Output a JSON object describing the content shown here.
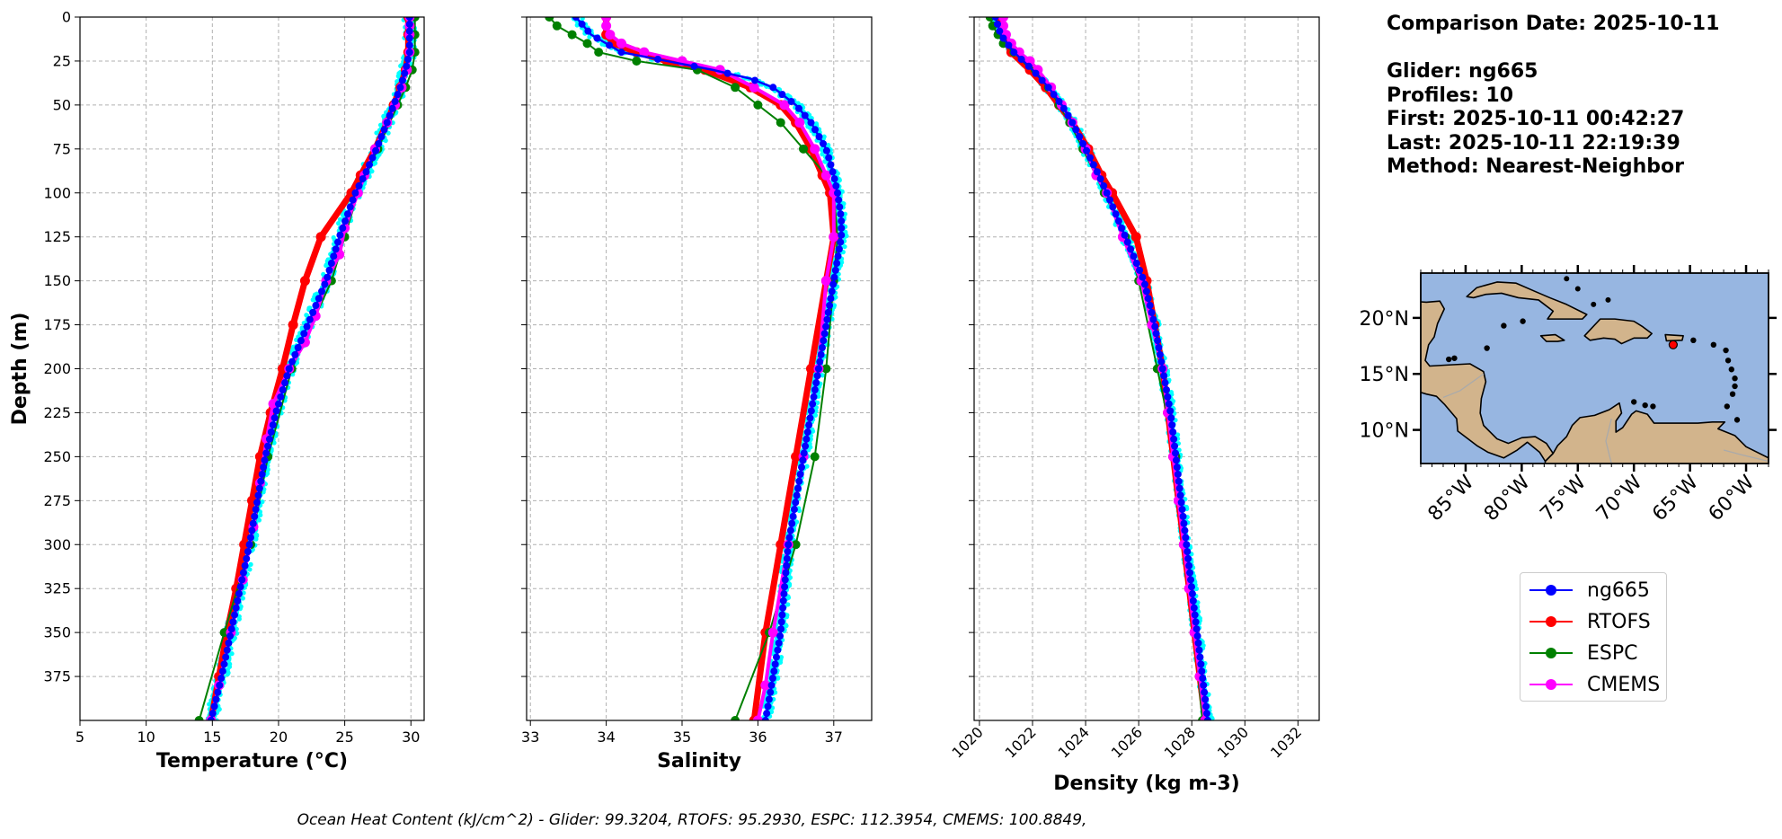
{
  "info": {
    "comparison_date": "Comparison Date: 2025-10-11",
    "glider": "Glider: ng665",
    "profiles": "Profiles: 10",
    "first": "First: 2025-10-11 00:42:27",
    "last": "Last: 2025-10-11 22:19:39",
    "method": "Method: Nearest-Neighbor"
  },
  "footer": "Ocean Heat Content (kJ/cm^2) - Glider: 99.3204,  RTOFS: 95.2930,  ESPC: 112.3954,  CMEMS: 100.8849,",
  "colors": {
    "ng665": "#0000ff",
    "RTOFS": "#ff0000",
    "ESPC": "#008000",
    "CMEMS": "#ff00ff",
    "glider_profiles": "#00ffff"
  },
  "legend": [
    {
      "label": "ng665",
      "color": "#0000ff"
    },
    {
      "label": "RTOFS",
      "color": "#ff0000"
    },
    {
      "label": "ESPC",
      "color": "#008000"
    },
    {
      "label": "CMEMS",
      "color": "#ff00ff"
    }
  ],
  "map": {
    "lat_ticks": [
      "10°N",
      "15°N",
      "20°N"
    ],
    "lon_ticks": [
      "85°W",
      "80°W",
      "75°W",
      "70°W",
      "65°W",
      "60°W"
    ],
    "extent": {
      "lon": [
        -89,
        -58
      ],
      "lat": [
        7,
        24
      ]
    },
    "glider_position": {
      "lon": -66.5,
      "lat": 17.6
    },
    "ocean_color": "#97b6e1",
    "land_color": "#d2b48c"
  },
  "chart_data": [
    {
      "type": "line",
      "id": "temperature",
      "xlabel": "Temperature (°C)",
      "ylabel": "Depth (m)",
      "xlim": [
        5,
        31
      ],
      "ylim": [
        0,
        400
      ],
      "x_ticks": [
        5,
        10,
        15,
        20,
        25,
        30
      ],
      "y_ticks": [
        0,
        25,
        50,
        75,
        100,
        125,
        150,
        175,
        200,
        225,
        250,
        275,
        300,
        325,
        350,
        375
      ],
      "series": [
        {
          "name": "ng665",
          "depth": [
            0,
            10,
            20,
            30,
            40,
            50,
            60,
            75,
            90,
            100,
            125,
            150,
            175,
            200,
            225,
            250,
            275,
            300,
            325,
            350,
            375,
            400
          ],
          "values": [
            29.9,
            29.9,
            29.9,
            29.6,
            29.2,
            28.7,
            28.2,
            27.4,
            26.5,
            25.8,
            24.6,
            23.6,
            22.2,
            20.8,
            19.8,
            19.0,
            18.4,
            17.8,
            17.1,
            16.4,
            15.7,
            14.9
          ]
        },
        {
          "name": "RTOFS",
          "depth": [
            0,
            10,
            20,
            30,
            40,
            50,
            60,
            75,
            90,
            100,
            125,
            150,
            175,
            200,
            225,
            250,
            275,
            300,
            325,
            350,
            375,
            400
          ],
          "values": [
            29.8,
            29.8,
            29.8,
            29.6,
            29.2,
            28.7,
            28.2,
            27.3,
            26.2,
            25.5,
            23.2,
            22.0,
            21.1,
            20.3,
            19.4,
            18.6,
            18.0,
            17.4,
            16.8,
            16.1,
            15.5,
            14.9
          ]
        },
        {
          "name": "ESPC",
          "depth": [
            0,
            10,
            20,
            30,
            40,
            50,
            75,
            100,
            125,
            150,
            200,
            250,
            300,
            350,
            400
          ],
          "values": [
            30.3,
            30.3,
            30.3,
            30.1,
            29.6,
            29.0,
            27.5,
            26.0,
            25.0,
            24.0,
            21.0,
            19.2,
            17.9,
            15.9,
            14.0
          ]
        },
        {
          "name": "CMEMS",
          "depth": [
            0,
            5,
            10,
            20,
            30,
            40,
            50,
            60,
            75,
            90,
            100,
            120,
            135,
            150,
            170,
            185,
            200,
            220,
            240,
            265,
            290,
            320,
            350,
            380,
            400
          ],
          "values": [
            29.9,
            29.9,
            29.9,
            29.9,
            29.7,
            29.3,
            28.8,
            28.2,
            27.3,
            26.5,
            26.0,
            25.0,
            24.6,
            23.6,
            22.8,
            22.0,
            20.8,
            19.6,
            19.1,
            18.6,
            18.1,
            17.3,
            16.4,
            15.5,
            14.9
          ]
        }
      ]
    },
    {
      "type": "line",
      "id": "salinity",
      "xlabel": "Salinity",
      "xlim": [
        32.95,
        37.5
      ],
      "ylim": [
        0,
        400
      ],
      "x_ticks": [
        33,
        34,
        35,
        36,
        37
      ],
      "series": [
        {
          "name": "ng665",
          "depth": [
            0,
            10,
            20,
            25,
            30,
            35,
            40,
            50,
            60,
            75,
            90,
            100,
            115,
            125,
            150,
            175,
            200,
            250,
            300,
            350,
            400
          ],
          "values": [
            33.6,
            33.8,
            34.2,
            34.8,
            35.4,
            35.9,
            36.2,
            36.5,
            36.7,
            36.9,
            37.0,
            37.05,
            37.1,
            37.1,
            37.0,
            36.9,
            36.8,
            36.6,
            36.4,
            36.3,
            36.1
          ]
        },
        {
          "name": "RTOFS",
          "depth": [
            0,
            10,
            15,
            20,
            25,
            30,
            40,
            50,
            60,
            75,
            90,
            100,
            125,
            150,
            200,
            250,
            300,
            350,
            400
          ],
          "values": [
            34.0,
            34.0,
            34.1,
            34.4,
            34.8,
            35.3,
            35.9,
            36.3,
            36.5,
            36.7,
            36.85,
            36.95,
            37.0,
            36.9,
            36.7,
            36.5,
            36.3,
            36.1,
            35.95
          ]
        },
        {
          "name": "ESPC",
          "depth": [
            0,
            5,
            10,
            15,
            20,
            25,
            30,
            40,
            50,
            60,
            75,
            90,
            100,
            125,
            150,
            200,
            250,
            300,
            350,
            400
          ],
          "values": [
            33.25,
            33.35,
            33.55,
            33.75,
            33.9,
            34.4,
            35.2,
            35.7,
            36.0,
            36.3,
            36.6,
            36.9,
            37.0,
            37.05,
            37.0,
            36.9,
            36.75,
            36.5,
            36.15,
            35.7
          ]
        },
        {
          "name": "CMEMS",
          "depth": [
            0,
            5,
            10,
            15,
            20,
            25,
            30,
            40,
            50,
            60,
            75,
            90,
            100,
            125,
            150,
            200,
            250,
            300,
            350,
            380,
            400
          ],
          "values": [
            34.0,
            34.0,
            34.05,
            34.2,
            34.5,
            35.0,
            35.5,
            35.95,
            36.35,
            36.55,
            36.75,
            36.9,
            37.0,
            37.0,
            36.9,
            36.8,
            36.6,
            36.4,
            36.2,
            36.1,
            36.0
          ]
        }
      ]
    },
    {
      "type": "line",
      "id": "density",
      "xlabel": "Density (kg m-3)",
      "xlim": [
        1019.8,
        1032.8
      ],
      "ylim": [
        0,
        400
      ],
      "x_ticks": [
        1020,
        1022,
        1024,
        1026,
        1028,
        1030,
        1032
      ],
      "series": [
        {
          "name": "ng665",
          "depth": [
            0,
            10,
            20,
            30,
            40,
            50,
            60,
            75,
            90,
            100,
            125,
            150,
            175,
            200,
            225,
            250,
            275,
            300,
            325,
            350,
            375,
            400
          ],
          "values": [
            1020.6,
            1020.8,
            1021.3,
            1022.0,
            1022.6,
            1023.1,
            1023.5,
            1024.0,
            1024.5,
            1024.8,
            1025.5,
            1026.2,
            1026.6,
            1026.9,
            1027.2,
            1027.4,
            1027.6,
            1027.8,
            1028.0,
            1028.2,
            1028.4,
            1028.6
          ]
        },
        {
          "name": "RTOFS",
          "depth": [
            0,
            10,
            20,
            30,
            40,
            50,
            60,
            75,
            90,
            100,
            125,
            150,
            175,
            200,
            225,
            250,
            275,
            300,
            325,
            350,
            375,
            400
          ],
          "values": [
            1020.8,
            1020.9,
            1021.2,
            1021.9,
            1022.5,
            1023.0,
            1023.5,
            1024.1,
            1024.6,
            1025.0,
            1025.9,
            1026.3,
            1026.6,
            1026.9,
            1027.1,
            1027.3,
            1027.5,
            1027.7,
            1027.9,
            1028.1,
            1028.3,
            1028.5
          ]
        },
        {
          "name": "ESPC",
          "depth": [
            0,
            5,
            10,
            15,
            20,
            25,
            30,
            40,
            50,
            60,
            75,
            100,
            125,
            150,
            200,
            250,
            300,
            350,
            400
          ],
          "values": [
            1020.4,
            1020.5,
            1020.7,
            1020.9,
            1021.3,
            1021.8,
            1022.1,
            1022.6,
            1023.0,
            1023.4,
            1023.9,
            1024.7,
            1025.5,
            1026.0,
            1026.7,
            1027.4,
            1027.7,
            1028.1,
            1028.4
          ]
        },
        {
          "name": "CMEMS",
          "depth": [
            0,
            5,
            10,
            15,
            20,
            25,
            30,
            40,
            50,
            60,
            75,
            90,
            100,
            125,
            150,
            175,
            200,
            225,
            250,
            275,
            300,
            325,
            350,
            375,
            400
          ],
          "values": [
            1020.9,
            1020.9,
            1021.0,
            1021.2,
            1021.5,
            1021.9,
            1022.2,
            1022.7,
            1023.1,
            1023.5,
            1024.0,
            1024.4,
            1024.8,
            1025.4,
            1026.1,
            1026.5,
            1026.9,
            1027.1,
            1027.3,
            1027.5,
            1027.7,
            1027.9,
            1028.1,
            1028.3,
            1028.5
          ]
        }
      ]
    }
  ]
}
